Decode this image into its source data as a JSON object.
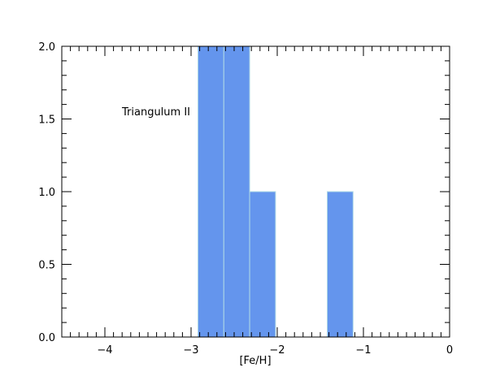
{
  "chart_data": {
    "type": "bar",
    "histogram": true,
    "bins": [
      {
        "x0": -2.92,
        "x1": -2.62,
        "value": 2
      },
      {
        "x0": -2.62,
        "x1": -2.32,
        "value": 2
      },
      {
        "x0": -2.32,
        "x1": -2.02,
        "value": 1
      },
      {
        "x0": -1.42,
        "x1": -1.12,
        "value": 1
      }
    ],
    "title": "",
    "xlabel": "[Fe/H]",
    "ylabel": "",
    "xlim": [
      -4.5,
      0
    ],
    "ylim": [
      0,
      2.0
    ],
    "xticks": [
      -4,
      -3,
      -2,
      -1,
      0
    ],
    "xtick_labels": [
      "−4",
      "−3",
      "−2",
      "−1",
      "0"
    ],
    "yticks": [
      0.0,
      0.5,
      1.0,
      1.5,
      2.0
    ],
    "ytick_labels": [
      "0.0",
      "0.5",
      "1.0",
      "1.5",
      "2.0"
    ],
    "annotation": "Triangulum II",
    "grid": false,
    "bar_color": "#6495ED",
    "bar_edge_color": "#ADD8E6"
  }
}
